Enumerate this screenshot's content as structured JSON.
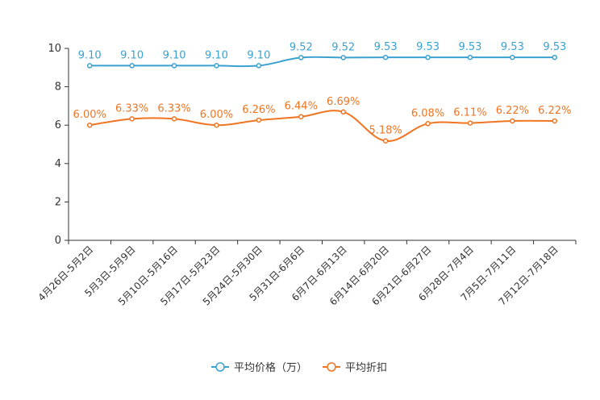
{
  "chart_data": {
    "type": "line",
    "categories": [
      "4月26日-5月2日",
      "5月3日-5月9日",
      "5月10日-5月16日",
      "5月17日-5月23日",
      "5月24日-5月30日",
      "5月31日-6月6日",
      "6月7日-6月13日",
      "6月14日-6月20日",
      "6月21日-6月27日",
      "6月28日-7月4日",
      "7月5日-7月11日",
      "7月12日-7月18日"
    ],
    "ylim": [
      0,
      10
    ],
    "yticks": [
      0,
      2,
      4,
      6,
      8,
      10
    ],
    "series": [
      {
        "name": "平均价格（万）",
        "color": "#3ba1d1",
        "values": [
          9.1,
          9.1,
          9.1,
          9.1,
          9.1,
          9.52,
          9.52,
          9.53,
          9.53,
          9.53,
          9.53,
          9.53
        ],
        "labels": [
          "9.10",
          "9.10",
          "9.10",
          "9.10",
          "9.10",
          "9.52",
          "9.52",
          "9.53",
          "9.53",
          "9.53",
          "9.53",
          "9.53"
        ]
      },
      {
        "name": "平均折扣",
        "color": "#f07522",
        "values": [
          6.0,
          6.33,
          6.33,
          6.0,
          6.26,
          6.44,
          6.69,
          5.18,
          6.08,
          6.11,
          6.22,
          6.22
        ],
        "labels": [
          "6.00%",
          "6.33%",
          "6.33%",
          "6.00%",
          "6.26%",
          "6.44%",
          "6.69%",
          "5.18%",
          "6.08%",
          "6.11%",
          "6.22%",
          "6.22%"
        ]
      }
    ],
    "legend_position": "bottom-center"
  }
}
